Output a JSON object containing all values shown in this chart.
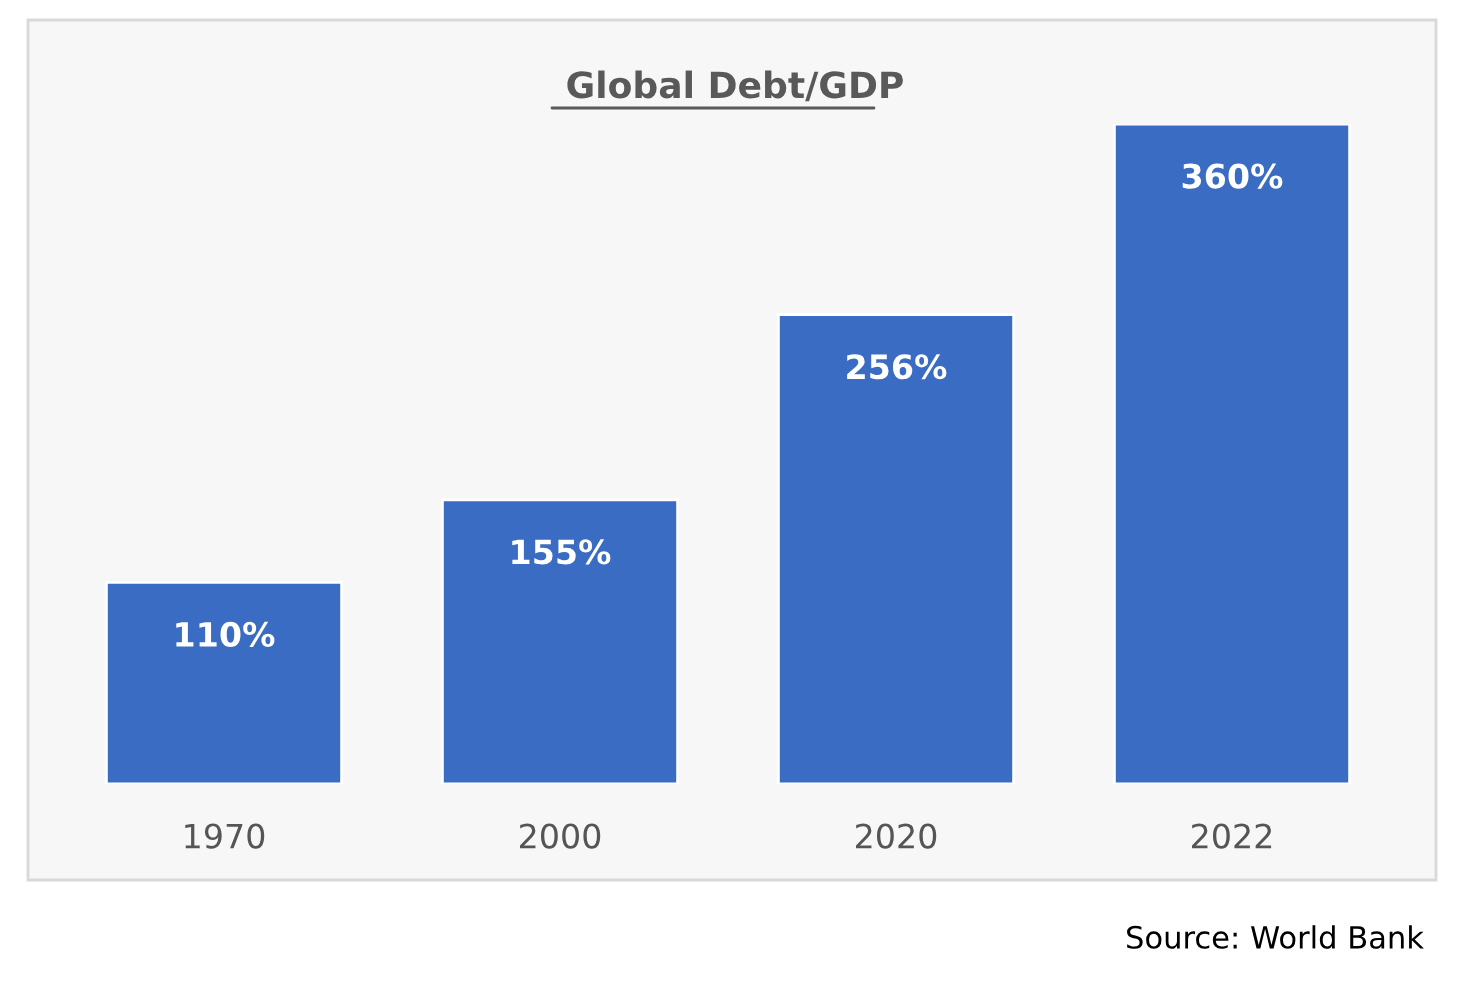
{
  "chart_data": {
    "type": "bar",
    "title": "Global Debt/GDP",
    "categories": [
      "1970",
      "2000",
      "2020",
      "2022"
    ],
    "values": [
      110,
      155,
      256,
      360
    ],
    "value_labels": [
      "110%",
      "155%",
      "256%",
      "360%"
    ],
    "color": "#3a6cc4",
    "annotations": [
      "Source: World Bank"
    ]
  }
}
